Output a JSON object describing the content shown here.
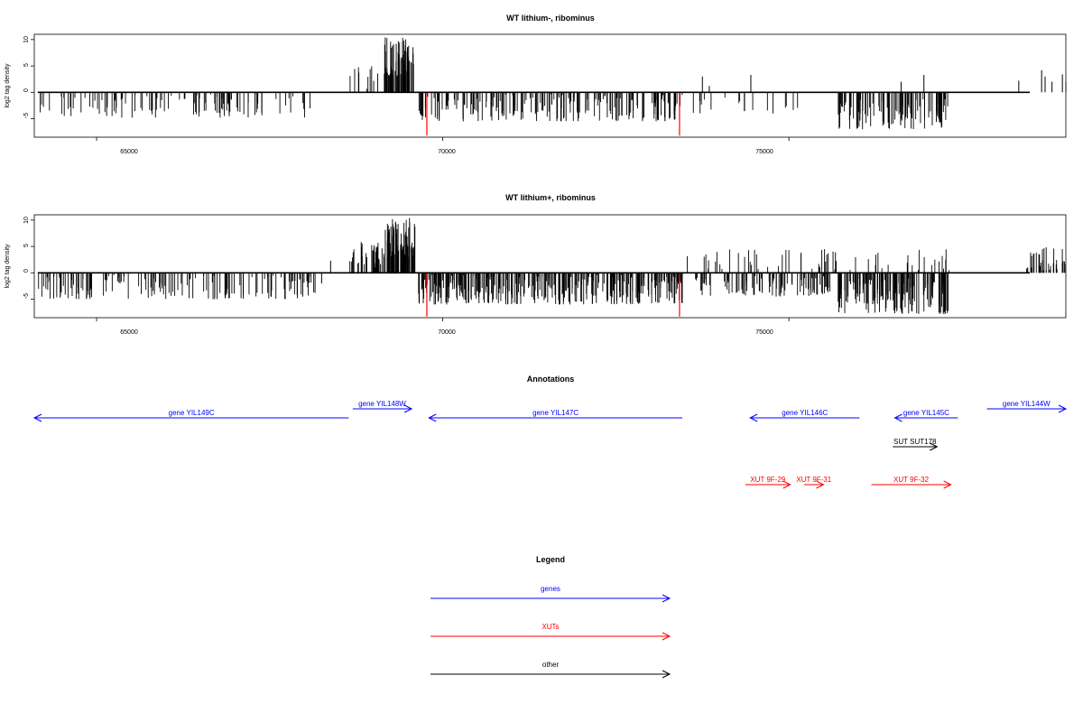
{
  "chart_data": [
    {
      "type": "bar",
      "title": "WT lithium-, ribominus",
      "ylabel": "log2 tag density",
      "xlim": [
        64100,
        79000
      ],
      "ylim": [
        -8.5,
        11
      ],
      "x_ticks": [
        "65000",
        "70000",
        "75000"
      ],
      "y_ticks": [
        "10",
        "5",
        "0",
        "-5"
      ],
      "colors": {
        "bars": "#000000",
        "highlight": "#ff0000"
      },
      "highlights": [
        {
          "x": 69770,
          "y": -8.2
        },
        {
          "x": 73420,
          "y": -8.2
        }
      ],
      "regions": [
        {
          "x0": 64150,
          "x1": 68100,
          "min": -4.8,
          "max": -0.4,
          "count": 110
        },
        {
          "x0": 68650,
          "x1": 69100,
          "min": 0.5,
          "max": 5,
          "count": 10
        },
        {
          "x0": 69150,
          "x1": 69580,
          "min": 3,
          "max": 10.5,
          "count": 70
        },
        {
          "x0": 69650,
          "x1": 73500,
          "min": -5.5,
          "max": -0.3,
          "count": 200
        },
        {
          "x0": 73600,
          "x1": 75200,
          "min": -4,
          "max": -0.5,
          "count": 18
        },
        {
          "x0": 75700,
          "x1": 77300,
          "min": -7,
          "max": -1,
          "count": 110
        }
      ],
      "points": [
        {
          "x": 73750,
          "y": 3
        },
        {
          "x": 73850,
          "y": 1.2
        },
        {
          "x": 74450,
          "y": 3.3
        },
        {
          "x": 76620,
          "y": 2
        },
        {
          "x": 76950,
          "y": 3.3
        },
        {
          "x": 78320,
          "y": 2.2
        },
        {
          "x": 78650,
          "y": 4.2
        },
        {
          "x": 78800,
          "y": 2
        },
        {
          "x": 78950,
          "y": 3.4
        },
        {
          "x": 78700,
          "y": 3
        },
        {
          "x": 79000,
          "y": 2
        }
      ]
    },
    {
      "type": "bar",
      "title": "WT lithium+, ribominus",
      "ylabel": "log2 tag density",
      "xlim": [
        64100,
        79000
      ],
      "ylim": [
        -8.5,
        11
      ],
      "x_ticks": [
        "65000",
        "70000",
        "75000"
      ],
      "y_ticks": [
        "10",
        "5",
        "0",
        "-5"
      ],
      "colors": {
        "bars": "#000000",
        "highlight": "#ff0000"
      },
      "highlights": [
        {
          "x": 69770,
          "y": -8.3
        },
        {
          "x": 73420,
          "y": -8.3
        }
      ],
      "regions": [
        {
          "x0": 64150,
          "x1": 68200,
          "min": -5,
          "max": -0.4,
          "count": 160
        },
        {
          "x0": 68650,
          "x1": 69150,
          "min": 1,
          "max": 6.5,
          "count": 40
        },
        {
          "x0": 69150,
          "x1": 69600,
          "min": 3,
          "max": 10.5,
          "count": 80
        },
        {
          "x0": 69650,
          "x1": 73500,
          "min": -6,
          "max": -0.4,
          "count": 350
        },
        {
          "x0": 73500,
          "x1": 77400,
          "min": 0.5,
          "max": 4.5,
          "count": 60
        },
        {
          "x0": 73600,
          "x1": 75600,
          "min": -4.5,
          "max": -0.5,
          "count": 100
        },
        {
          "x0": 75700,
          "x1": 77300,
          "min": -7.8,
          "max": -1,
          "count": 160
        },
        {
          "x0": 78300,
          "x1": 79000,
          "min": 0.5,
          "max": 5,
          "count": 35
        }
      ],
      "points": [
        {
          "x": 68380,
          "y": 2.3
        },
        {
          "x": 68250,
          "y": -2
        }
      ]
    }
  ],
  "annotations": {
    "title": "Annotations",
    "xlim": [
      64100,
      79000
    ],
    "features": [
      {
        "label": "gene YIL149C",
        "type": "gene",
        "x0": 64100,
        "x1": 68640,
        "strand": "-",
        "row": 1
      },
      {
        "label": "gene YIL148W",
        "type": "gene",
        "x0": 68700,
        "x1": 69550,
        "strand": "+",
        "row": 0
      },
      {
        "label": "gene YIL147C",
        "type": "gene",
        "x0": 69800,
        "x1": 73460,
        "strand": "-",
        "row": 1
      },
      {
        "label": "gene YIL146C",
        "type": "gene",
        "x0": 74440,
        "x1": 76020,
        "strand": "-",
        "row": 1
      },
      {
        "label": "gene YIL145C",
        "type": "gene",
        "x0": 76530,
        "x1": 77440,
        "strand": "-",
        "row": 1
      },
      {
        "label": "gene YIL144W",
        "type": "gene",
        "x0": 77860,
        "x1": 79300,
        "strand": "+",
        "row": 0
      },
      {
        "label": "SUT SUT178",
        "type": "other",
        "x0": 76500,
        "x1": 77140,
        "strand": "+",
        "row": 2
      },
      {
        "label": "XUT 9F-29",
        "type": "xut",
        "x0": 74370,
        "x1": 75020,
        "strand": "+",
        "row": 3
      },
      {
        "label": "XUT 9F-31",
        "type": "xut",
        "x0": 75220,
        "x1": 75500,
        "strand": "+",
        "row": 3
      },
      {
        "label": "XUT 9F-32",
        "type": "xut",
        "x0": 76190,
        "x1": 77340,
        "strand": "+",
        "row": 3
      }
    ],
    "colors": {
      "gene": "#0000ff",
      "xut": "#ff0000",
      "other": "#000000"
    }
  },
  "legend": {
    "title": "Legend",
    "entries": [
      {
        "label": "genes",
        "color": "#0000ff"
      },
      {
        "label": "XUTs",
        "color": "#ff0000"
      },
      {
        "label": "other",
        "color": "#000000"
      }
    ]
  }
}
